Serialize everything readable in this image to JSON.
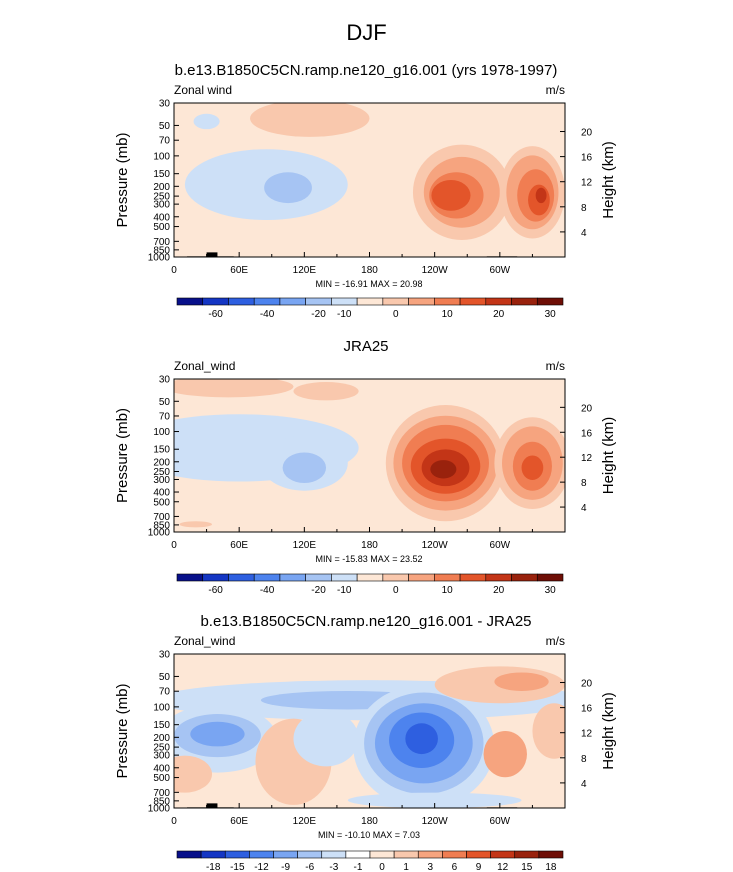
{
  "page_title": "DJF",
  "palettes": {
    "abs": [
      "#08108a",
      "#1436c4",
      "#2e5fe0",
      "#4d83ee",
      "#79a5f2",
      "#a6c4f3",
      "#cde0f7",
      "#fde7d6",
      "#f9c8ad",
      "#f6a47f",
      "#f07d52",
      "#e3552a",
      "#c33517",
      "#99220d",
      "#6e0e06"
    ],
    "diff": [
      "#08108a",
      "#1436c4",
      "#2e5fe0",
      "#4d83ee",
      "#79a5f2",
      "#a6c4f3",
      "#cde0f7",
      "#ffffff",
      "#fde7d6",
      "#f9c8ad",
      "#f6a47f",
      "#f07d52",
      "#e3552a",
      "#c33517",
      "#99220d",
      "#6e0e06"
    ]
  },
  "chart_data": [
    {
      "type": "heatmap",
      "title": "b.e13.B1850C5CN.ramp.ne120_g16.001 (yrs 1978-1997)",
      "left_label": "Zonal wind",
      "units": "m/s",
      "ylabel": "Pressure (mb)",
      "y2label": "Height (km)",
      "xticks": [
        "0",
        "60E",
        "120E",
        "180",
        "120W",
        "60W"
      ],
      "yticks": [
        "30",
        "50",
        "70",
        "100",
        "150",
        "200",
        "250",
        "300",
        "400",
        "500",
        "700",
        "850",
        "1000"
      ],
      "y2ticks": [
        "20",
        "16",
        "12",
        "8",
        "4"
      ],
      "stats": "MIN = -16.91  MAX =  20.98",
      "colorbar_labels": [
        "-60",
        "-40",
        "-20",
        "-10",
        "0",
        "10",
        "20",
        "30"
      ],
      "colorbar_label_slots": [
        1,
        3,
        5,
        6,
        8,
        10,
        12,
        14
      ],
      "palette": "abs",
      "has_topography": true,
      "background_level": 7,
      "blobs": [
        {
          "lon": 30,
          "lp": 0.12,
          "rx": 12,
          "ry": 0.05,
          "v": 6
        },
        {
          "lon": 85,
          "lp": 0.53,
          "rx": 75,
          "ry": 0.23,
          "v": 6
        },
        {
          "lon": 105,
          "lp": 0.55,
          "rx": 22,
          "ry": 0.1,
          "v": 5
        },
        {
          "lon": 125,
          "lp": 0.1,
          "rx": 55,
          "ry": 0.12,
          "v": 8
        },
        {
          "lon": 265,
          "lp": 0.58,
          "rx": 45,
          "ry": 0.31,
          "v": 8
        },
        {
          "lon": 265,
          "lp": 0.58,
          "rx": 35,
          "ry": 0.23,
          "v": 9
        },
        {
          "lon": 260,
          "lp": 0.6,
          "rx": 25,
          "ry": 0.15,
          "v": 10
        },
        {
          "lon": 255,
          "lp": 0.6,
          "rx": 18,
          "ry": 0.1,
          "v": 11
        },
        {
          "lon": 330,
          "lp": 0.58,
          "rx": 30,
          "ry": 0.3,
          "v": 8
        },
        {
          "lon": 330,
          "lp": 0.58,
          "rx": 24,
          "ry": 0.24,
          "v": 9
        },
        {
          "lon": 333,
          "lp": 0.6,
          "rx": 17,
          "ry": 0.17,
          "v": 10
        },
        {
          "lon": 336,
          "lp": 0.63,
          "rx": 10,
          "ry": 0.1,
          "v": 11
        },
        {
          "lon": 338,
          "lp": 0.6,
          "rx": 5,
          "ry": 0.05,
          "v": 12
        }
      ]
    },
    {
      "type": "heatmap",
      "title": "JRA25",
      "left_label": "Zonal_wind",
      "units": "m/s",
      "ylabel": "Pressure (mb)",
      "y2label": "Height (km)",
      "xticks": [
        "0",
        "60E",
        "120E",
        "180",
        "120W",
        "60W"
      ],
      "yticks": [
        "30",
        "50",
        "70",
        "100",
        "150",
        "200",
        "250",
        "300",
        "400",
        "500",
        "700",
        "850",
        "1000"
      ],
      "y2ticks": [
        "20",
        "16",
        "12",
        "8",
        "4"
      ],
      "stats": "MIN = -15.83  MAX =  23.52",
      "colorbar_labels": [
        "-60",
        "-40",
        "-20",
        "-10",
        "0",
        "10",
        "20",
        "30"
      ],
      "colorbar_label_slots": [
        1,
        3,
        5,
        6,
        8,
        10,
        12,
        14
      ],
      "palette": "abs",
      "has_topography": false,
      "background_level": 7,
      "blobs": [
        {
          "lon": 60,
          "lp": 0.45,
          "rx": 110,
          "ry": 0.22,
          "v": 6
        },
        {
          "lon": 120,
          "lp": 0.55,
          "rx": 40,
          "ry": 0.18,
          "v": 6
        },
        {
          "lon": 120,
          "lp": 0.58,
          "rx": 20,
          "ry": 0.1,
          "v": 5
        },
        {
          "lon": 50,
          "lp": 0.05,
          "rx": 60,
          "ry": 0.07,
          "v": 8
        },
        {
          "lon": 140,
          "lp": 0.08,
          "rx": 30,
          "ry": 0.06,
          "v": 8
        },
        {
          "lon": 20,
          "lp": 0.95,
          "rx": 15,
          "ry": 0.02,
          "v": 8
        },
        {
          "lon": 250,
          "lp": 0.55,
          "rx": 55,
          "ry": 0.38,
          "v": 8
        },
        {
          "lon": 250,
          "lp": 0.55,
          "rx": 48,
          "ry": 0.31,
          "v": 9
        },
        {
          "lon": 250,
          "lp": 0.55,
          "rx": 40,
          "ry": 0.25,
          "v": 10
        },
        {
          "lon": 250,
          "lp": 0.57,
          "rx": 32,
          "ry": 0.18,
          "v": 11
        },
        {
          "lon": 250,
          "lp": 0.58,
          "rx": 22,
          "ry": 0.12,
          "v": 12
        },
        {
          "lon": 248,
          "lp": 0.59,
          "rx": 12,
          "ry": 0.06,
          "v": 13
        },
        {
          "lon": 330,
          "lp": 0.55,
          "rx": 35,
          "ry": 0.3,
          "v": 8
        },
        {
          "lon": 330,
          "lp": 0.55,
          "rx": 28,
          "ry": 0.24,
          "v": 9
        },
        {
          "lon": 330,
          "lp": 0.57,
          "rx": 18,
          "ry": 0.16,
          "v": 10
        },
        {
          "lon": 330,
          "lp": 0.58,
          "rx": 10,
          "ry": 0.08,
          "v": 11
        }
      ]
    },
    {
      "type": "heatmap",
      "title": "b.e13.B1850C5CN.ramp.ne120_g16.001 - JRA25",
      "left_label": "Zonal_wind",
      "units": "m/s",
      "ylabel": "Pressure (mb)",
      "y2label": "Height (km)",
      "xticks": [
        "0",
        "60E",
        "120E",
        "180",
        "120W",
        "60W"
      ],
      "yticks": [
        "30",
        "50",
        "70",
        "100",
        "150",
        "200",
        "250",
        "300",
        "400",
        "500",
        "700",
        "850",
        "1000"
      ],
      "y2ticks": [
        "20",
        "16",
        "12",
        "8",
        "4"
      ],
      "stats": "MIN = -10.10  MAX =   7.03",
      "colorbar_labels": [
        "-18",
        "-15",
        "-12",
        "-9",
        "-6",
        "-3",
        "-1",
        "0",
        "1",
        "3",
        "6",
        "9",
        "12",
        "15",
        "18"
      ],
      "colorbar_label_slots": [
        1,
        2,
        3,
        4,
        5,
        6,
        7,
        8,
        9,
        10,
        11,
        12,
        13,
        14,
        15
      ],
      "palette": "diff",
      "has_topography": true,
      "background_level": 8,
      "blobs": [
        {
          "lon": 180,
          "lp": 0.3,
          "rx": 200,
          "ry": 0.13,
          "v": 6
        },
        {
          "lon": 160,
          "lp": 0.3,
          "rx": 80,
          "ry": 0.06,
          "v": 5
        },
        {
          "lon": 40,
          "lp": 0.55,
          "rx": 55,
          "ry": 0.22,
          "v": 6
        },
        {
          "lon": 40,
          "lp": 0.53,
          "rx": 40,
          "ry": 0.14,
          "v": 5
        },
        {
          "lon": 40,
          "lp": 0.52,
          "rx": 25,
          "ry": 0.08,
          "v": 4
        },
        {
          "lon": 10,
          "lp": 0.78,
          "rx": 25,
          "ry": 0.12,
          "v": 9
        },
        {
          "lon": 110,
          "lp": 0.7,
          "rx": 35,
          "ry": 0.28,
          "v": 9
        },
        {
          "lon": 140,
          "lp": 0.55,
          "rx": 30,
          "ry": 0.18,
          "v": 6
        },
        {
          "lon": 230,
          "lp": 0.6,
          "rx": 65,
          "ry": 0.4,
          "v": 6
        },
        {
          "lon": 230,
          "lp": 0.58,
          "rx": 55,
          "ry": 0.33,
          "v": 5
        },
        {
          "lon": 230,
          "lp": 0.58,
          "rx": 45,
          "ry": 0.26,
          "v": 4
        },
        {
          "lon": 228,
          "lp": 0.56,
          "rx": 30,
          "ry": 0.18,
          "v": 3
        },
        {
          "lon": 228,
          "lp": 0.55,
          "rx": 15,
          "ry": 0.1,
          "v": 2
        },
        {
          "lon": 300,
          "lp": 0.2,
          "rx": 60,
          "ry": 0.12,
          "v": 9
        },
        {
          "lon": 320,
          "lp": 0.18,
          "rx": 25,
          "ry": 0.06,
          "v": 10
        },
        {
          "lon": 305,
          "lp": 0.65,
          "rx": 20,
          "ry": 0.15,
          "v": 10
        },
        {
          "lon": 350,
          "lp": 0.5,
          "rx": 20,
          "ry": 0.18,
          "v": 9
        },
        {
          "lon": 240,
          "lp": 0.95,
          "rx": 80,
          "ry": 0.05,
          "v": 6
        }
      ]
    }
  ]
}
